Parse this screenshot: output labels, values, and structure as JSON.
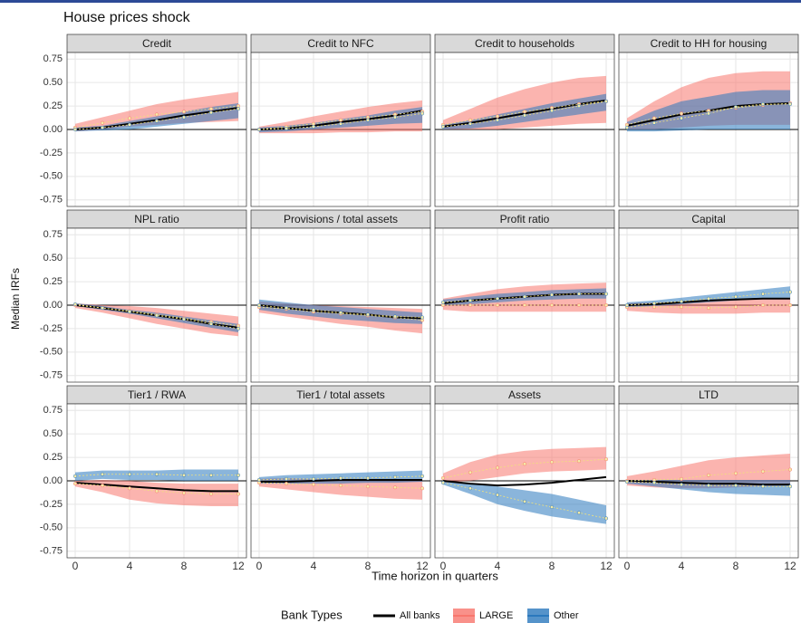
{
  "title": "House prices shock",
  "xlabel": "Time horizon in quarters",
  "ylabel": "Median IRFs",
  "x": [
    0,
    2,
    4,
    6,
    8,
    10,
    12
  ],
  "xlim": [
    -0.6,
    12.6
  ],
  "xticks": [
    0,
    4,
    8,
    12
  ],
  "ylim": [
    -0.82,
    0.82
  ],
  "yticks": [
    0.75,
    {
      "value": 0.5,
      "label": "0.50"
    },
    0.25,
    {
      "value": 0,
      "label": "0.00"
    },
    -0.25,
    {
      "value": -0.5,
      "label": "-0.50"
    },
    -0.75
  ],
  "legend": {
    "title": "Bank Types",
    "entries": [
      {
        "name": "All banks",
        "color": "#000000"
      },
      {
        "name": "LARGE",
        "color": "#f8766d"
      },
      {
        "name": "Other",
        "color": "#2a78bd"
      }
    ]
  },
  "chart_data": [
    {
      "type": "line",
      "title": "Credit",
      "series": [
        {
          "values": [
            0,
            0.02,
            0.06,
            0.1,
            0.15,
            0.19,
            0.23
          ]
        },
        {
          "values": [
            0.02,
            0.07,
            0.12,
            0.16,
            0.19,
            0.22,
            0.25
          ],
          "lower": [
            -0.02,
            0.0,
            0.03,
            0.05,
            0.07,
            0.08,
            0.09
          ],
          "upper": [
            0.06,
            0.13,
            0.2,
            0.27,
            0.32,
            0.36,
            0.4
          ]
        },
        {
          "values": [
            0,
            0.02,
            0.05,
            0.09,
            0.13,
            0.18,
            0.22
          ],
          "lower": [
            -0.02,
            -0.01,
            0.0,
            0.03,
            0.06,
            0.09,
            0.12
          ],
          "upper": [
            0.02,
            0.04,
            0.09,
            0.14,
            0.19,
            0.24,
            0.28
          ]
        }
      ]
    },
    {
      "type": "line",
      "title": "Credit to NFC",
      "series": [
        {
          "values": [
            0,
            0.01,
            0.04,
            0.08,
            0.11,
            0.15,
            0.2
          ]
        },
        {
          "values": [
            0.0,
            0.03,
            0.06,
            0.1,
            0.13,
            0.16,
            0.19
          ],
          "lower": [
            -0.04,
            -0.04,
            -0.04,
            -0.03,
            -0.03,
            -0.02,
            -0.02
          ],
          "upper": [
            0.03,
            0.08,
            0.14,
            0.19,
            0.24,
            0.28,
            0.31
          ]
        },
        {
          "values": [
            0,
            0.01,
            0.03,
            0.06,
            0.1,
            0.13,
            0.17
          ],
          "lower": [
            -0.03,
            -0.02,
            0.0,
            0.02,
            0.04,
            0.06,
            0.07
          ],
          "upper": [
            0.02,
            0.04,
            0.07,
            0.11,
            0.15,
            0.2,
            0.24
          ]
        }
      ]
    },
    {
      "type": "line",
      "title": "Credit to households",
      "series": [
        {
          "values": [
            0.03,
            0.07,
            0.12,
            0.17,
            0.22,
            0.27,
            0.31
          ]
        },
        {
          "values": [
            0.05,
            0.1,
            0.14,
            0.19,
            0.23,
            0.27,
            0.3
          ],
          "lower": [
            0.0,
            0.0,
            0.0,
            0.02,
            0.04,
            0.06,
            0.07
          ],
          "upper": [
            0.1,
            0.22,
            0.34,
            0.43,
            0.5,
            0.55,
            0.57
          ]
        },
        {
          "values": [
            0.03,
            0.06,
            0.1,
            0.15,
            0.2,
            0.25,
            0.3
          ],
          "lower": [
            0.0,
            0.01,
            0.04,
            0.08,
            0.12,
            0.16,
            0.2
          ],
          "upper": [
            0.05,
            0.1,
            0.16,
            0.22,
            0.28,
            0.33,
            0.38
          ]
        }
      ]
    },
    {
      "type": "line",
      "title": "Credit to HH for housing",
      "series": [
        {
          "values": [
            0.04,
            0.1,
            0.16,
            0.2,
            0.25,
            0.27,
            0.28
          ]
        },
        {
          "values": [
            0.05,
            0.12,
            0.17,
            0.2,
            0.23,
            0.26,
            0.28
          ],
          "lower": [
            0.0,
            0.0,
            0.02,
            0.04,
            0.05,
            0.05,
            0.05
          ],
          "upper": [
            0.12,
            0.3,
            0.45,
            0.55,
            0.6,
            0.62,
            0.62
          ]
        },
        {
          "values": [
            0.02,
            0.07,
            0.12,
            0.17,
            0.24,
            0.27,
            0.27
          ],
          "lower": [
            -0.02,
            -0.02,
            -0.01,
            0,
            0,
            0,
            0
          ],
          "upper": [
            0.08,
            0.2,
            0.3,
            0.35,
            0.4,
            0.42,
            0.42
          ]
        }
      ]
    },
    {
      "type": "line",
      "title": "NPL ratio",
      "series": [
        {
          "values": [
            0,
            -0.03,
            -0.07,
            -0.11,
            -0.15,
            -0.2,
            -0.24
          ]
        },
        {
          "values": [
            0,
            -0.03,
            -0.06,
            -0.1,
            -0.14,
            -0.18,
            -0.22
          ],
          "lower": [
            -0.03,
            -0.08,
            -0.14,
            -0.2,
            -0.25,
            -0.3,
            -0.33
          ],
          "upper": [
            0.02,
            0.0,
            -0.01,
            -0.03,
            -0.06,
            -0.09,
            -0.12
          ]
        },
        {
          "values": [
            0.01,
            -0.03,
            -0.07,
            -0.11,
            -0.15,
            -0.2,
            -0.25
          ],
          "lower": [
            -0.01,
            -0.05,
            -0.09,
            -0.14,
            -0.19,
            -0.24,
            -0.29
          ],
          "upper": [
            0.02,
            -0.01,
            -0.05,
            -0.08,
            -0.12,
            -0.16,
            -0.2
          ]
        }
      ]
    },
    {
      "type": "line",
      "title": "Provisions / total assets",
      "series": [
        {
          "values": [
            0,
            -0.03,
            -0.06,
            -0.08,
            -0.1,
            -0.13,
            -0.14
          ]
        },
        {
          "values": [
            -0.02,
            -0.04,
            -0.07,
            -0.09,
            -0.11,
            -0.13,
            -0.16
          ],
          "lower": [
            -0.08,
            -0.12,
            -0.16,
            -0.2,
            -0.23,
            -0.27,
            -0.3
          ],
          "upper": [
            0.04,
            0.02,
            0.0,
            -0.01,
            -0.02,
            -0.03,
            -0.04
          ]
        },
        {
          "values": [
            0,
            -0.03,
            -0.05,
            -0.08,
            -0.1,
            -0.12,
            -0.13
          ],
          "lower": [
            -0.05,
            -0.09,
            -0.12,
            -0.15,
            -0.17,
            -0.19,
            -0.2
          ],
          "upper": [
            0.06,
            0.03,
            0.0,
            -0.02,
            -0.04,
            -0.06,
            -0.08
          ]
        }
      ]
    },
    {
      "type": "line",
      "title": "Profit ratio",
      "series": [
        {
          "values": [
            0.02,
            0.05,
            0.07,
            0.09,
            0.11,
            0.12,
            0.12
          ]
        },
        {
          "values": [
            0,
            0,
            0,
            0,
            0,
            0,
            0
          ],
          "lower": [
            -0.05,
            -0.07,
            -0.07,
            -0.07,
            -0.07,
            -0.07,
            -0.07
          ],
          "upper": [
            0.07,
            0.12,
            0.17,
            0.2,
            0.22,
            0.23,
            0.24
          ]
        },
        {
          "values": [
            0.03,
            0.05,
            0.07,
            0.09,
            0.11,
            0.12,
            0.12
          ],
          "lower": [
            0.0,
            0.01,
            0.03,
            0.05,
            0.06,
            0.07,
            0.07
          ],
          "upper": [
            0.06,
            0.09,
            0.12,
            0.14,
            0.16,
            0.17,
            0.18
          ]
        }
      ]
    },
    {
      "type": "line",
      "title": "Capital",
      "series": [
        {
          "values": [
            0,
            0.01,
            0.03,
            0.05,
            0.06,
            0.07,
            0.07
          ]
        },
        {
          "values": [
            -0.02,
            -0.02,
            -0.02,
            -0.03,
            -0.02,
            0,
            0
          ],
          "lower": [
            -0.06,
            -0.08,
            -0.09,
            -0.09,
            -0.09,
            -0.08,
            -0.08
          ],
          "upper": [
            0.02,
            0.03,
            0.04,
            0.05,
            0.06,
            0.07,
            0.08
          ]
        },
        {
          "values": [
            0,
            0.02,
            0.04,
            0.07,
            0.09,
            0.12,
            0.14
          ],
          "lower": [
            -0.02,
            -0.01,
            0.01,
            0.03,
            0.05,
            0.07,
            0.08
          ],
          "upper": [
            0.03,
            0.05,
            0.08,
            0.11,
            0.14,
            0.17,
            0.2
          ]
        }
      ]
    },
    {
      "type": "line",
      "title": "Tier1 / RWA",
      "series": [
        {
          "values": [
            -0.02,
            -0.04,
            -0.06,
            -0.08,
            -0.1,
            -0.11,
            -0.11
          ]
        },
        {
          "values": [
            -0.03,
            -0.05,
            -0.08,
            -0.11,
            -0.13,
            -0.14,
            -0.14
          ],
          "lower": [
            -0.06,
            -0.12,
            -0.2,
            -0.24,
            -0.26,
            -0.27,
            -0.27
          ],
          "upper": [
            0.0,
            0.01,
            0.0,
            -0.02,
            -0.03,
            -0.03,
            -0.03
          ]
        },
        {
          "values": [
            0.05,
            0.07,
            0.07,
            0.07,
            0.06,
            0.06,
            0.06
          ],
          "lower": [
            0.0,
            0.02,
            0.01,
            0.01,
            0.0,
            0.0,
            0.0
          ],
          "upper": [
            0.09,
            0.11,
            0.11,
            0.11,
            0.12,
            0.12,
            0.12
          ]
        }
      ]
    },
    {
      "type": "line",
      "title": "Tier1 / total assets",
      "series": [
        {
          "values": [
            -0.01,
            -0.01,
            0.0,
            0.01,
            0.01,
            0.01,
            0.01
          ]
        },
        {
          "values": [
            -0.02,
            -0.03,
            -0.04,
            -0.05,
            -0.06,
            -0.07,
            -0.08
          ],
          "lower": [
            -0.06,
            -0.09,
            -0.12,
            -0.15,
            -0.17,
            -0.19,
            -0.2
          ],
          "upper": [
            0.02,
            0.03,
            0.02,
            0.02,
            0.02,
            0.02,
            0.02
          ]
        },
        {
          "values": [
            0.01,
            0.02,
            0.02,
            0.03,
            0.03,
            0.04,
            0.05
          ],
          "lower": [
            -0.03,
            -0.03,
            -0.03,
            -0.03,
            -0.02,
            -0.02,
            -0.01
          ],
          "upper": [
            0.04,
            0.06,
            0.07,
            0.08,
            0.09,
            0.1,
            0.11
          ]
        }
      ]
    },
    {
      "type": "line",
      "title": "Assets",
      "series": [
        {
          "values": [
            0,
            -0.03,
            -0.05,
            -0.04,
            -0.02,
            0.01,
            0.04
          ]
        },
        {
          "values": [
            0.03,
            0.09,
            0.14,
            0.18,
            0.2,
            0.21,
            0.23
          ],
          "lower": [
            -0.02,
            0.0,
            0.04,
            0.08,
            0.1,
            0.11,
            0.12
          ],
          "upper": [
            0.08,
            0.2,
            0.28,
            0.32,
            0.34,
            0.35,
            0.36
          ]
        },
        {
          "values": [
            -0.02,
            -0.08,
            -0.15,
            -0.22,
            -0.28,
            -0.34,
            -0.4
          ],
          "lower": [
            -0.04,
            -0.14,
            -0.25,
            -0.32,
            -0.38,
            -0.42,
            -0.46
          ],
          "upper": [
            0.0,
            -0.03,
            -0.06,
            -0.1,
            -0.14,
            -0.2,
            -0.26
          ]
        }
      ]
    },
    {
      "type": "line",
      "title": "LTD",
      "series": [
        {
          "values": [
            0,
            -0.01,
            -0.02,
            -0.03,
            -0.03,
            -0.04,
            -0.04
          ]
        },
        {
          "values": [
            0,
            0.01,
            0.02,
            0.06,
            0.08,
            0.1,
            0.12
          ],
          "lower": [
            -0.05,
            -0.07,
            -0.08,
            -0.08,
            -0.07,
            -0.06,
            -0.05
          ],
          "upper": [
            0.05,
            0.1,
            0.16,
            0.22,
            0.25,
            0.27,
            0.29
          ]
        },
        {
          "values": [
            -0.01,
            -0.02,
            -0.04,
            -0.05,
            -0.05,
            -0.06,
            -0.06
          ],
          "lower": [
            -0.03,
            -0.06,
            -0.09,
            -0.12,
            -0.14,
            -0.15,
            -0.16
          ],
          "upper": [
            0.01,
            0.01,
            0.01,
            0.01,
            0.01,
            0.01,
            0.01
          ]
        }
      ]
    }
  ]
}
